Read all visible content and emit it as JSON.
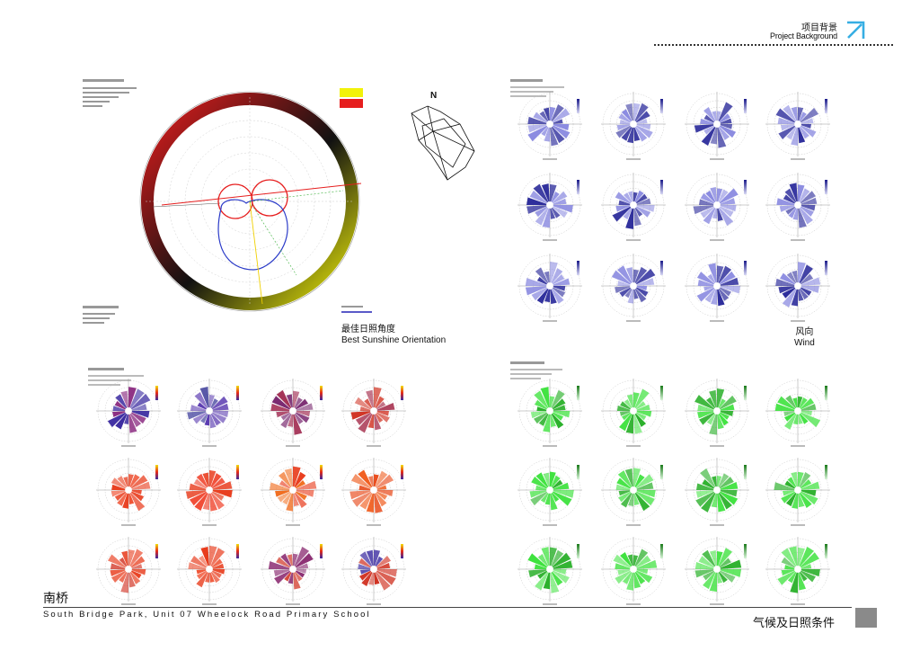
{
  "header": {
    "title_cn": "项目背景",
    "title_en": "Project Background",
    "icon": "arrow-up-right-icon",
    "accent": "#36aee3"
  },
  "sun": {
    "caption_cn": "最佳日照角度",
    "caption_en": "Best Sunshine Orientation"
  },
  "compass": {
    "north_label": "N"
  },
  "wind": {
    "caption_cn": "风向",
    "caption_en": "Wind"
  },
  "footer": {
    "project_cn": "南桥",
    "project_en": "South Bridge Park, Unit 07 Wheelock Road Primary School",
    "section_cn": "气候及日照条件"
  },
  "colors": {
    "blue_rose": "#3a3ab0",
    "green_rose": "#38e238",
    "red_rose": "#e52a1a",
    "sun_ring": "#e61e1e"
  }
}
